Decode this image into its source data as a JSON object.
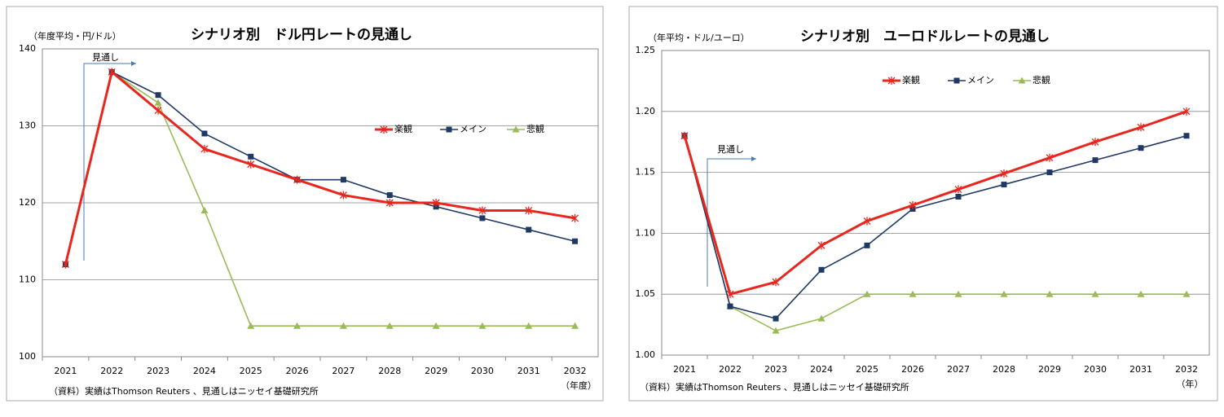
{
  "chart_data": [
    {
      "type": "line",
      "title": "シナリオ別　ドル円レートの見通し",
      "y_label": "（年度平均・円/ドル）",
      "x_label": "（年度）",
      "source": "（資料）実績はThomson Reuters 、見通しはニッセイ基礎研究所",
      "annotation": "見通し",
      "categories": [
        "2021",
        "2022",
        "2023",
        "2024",
        "2025",
        "2026",
        "2027",
        "2028",
        "2029",
        "2030",
        "2031",
        "2032"
      ],
      "series": [
        {
          "name": "楽観",
          "color": "#e8261e",
          "marker": "x",
          "values": [
            112,
            137,
            132,
            127,
            125,
            123,
            121,
            120,
            120,
            119,
            119,
            118
          ]
        },
        {
          "name": "メイン",
          "color": "#1f3864",
          "marker": "square",
          "values": [
            112,
            137,
            134,
            129,
            126,
            123,
            123,
            121,
            119.5,
            118,
            116.5,
            115
          ]
        },
        {
          "name": "悲観",
          "color": "#9bbb59",
          "marker": "triangle",
          "values": [
            112,
            137,
            133,
            119,
            104,
            104,
            104,
            104,
            104,
            104,
            104,
            104
          ]
        }
      ],
      "ylim": [
        100,
        140
      ],
      "yticks": [
        100,
        110,
        120,
        130,
        140
      ],
      "grid": true
    },
    {
      "type": "line",
      "title": "シナリオ別　ユーロドルレートの見通し",
      "y_label": "（年平均・ドル/ユーロ）",
      "x_label": "（年）",
      "source": "（資料）実績はThomson Reuters 、見通しはニッセイ基礎研究所",
      "annotation": "見通し",
      "categories": [
        "2021",
        "2022",
        "2023",
        "2024",
        "2025",
        "2026",
        "2027",
        "2028",
        "2029",
        "2030",
        "2031",
        "2032"
      ],
      "series": [
        {
          "name": "楽観",
          "color": "#e8261e",
          "marker": "x",
          "values": [
            1.18,
            1.05,
            1.06,
            1.09,
            1.11,
            1.123,
            1.136,
            1.149,
            1.162,
            1.175,
            1.187,
            1.2
          ]
        },
        {
          "name": "メイン",
          "color": "#1f3864",
          "marker": "square",
          "values": [
            1.18,
            1.04,
            1.03,
            1.07,
            1.09,
            1.12,
            1.13,
            1.14,
            1.15,
            1.16,
            1.17,
            1.18
          ]
        },
        {
          "name": "悲観",
          "color": "#9bbb59",
          "marker": "triangle",
          "values": [
            1.18,
            1.04,
            1.02,
            1.03,
            1.05,
            1.05,
            1.05,
            1.05,
            1.05,
            1.05,
            1.05,
            1.05
          ]
        }
      ],
      "ylim": [
        1.0,
        1.25
      ],
      "yticks": [
        {
          "value": 1.0,
          "label": "1.00"
        },
        1.05,
        {
          "value": 1.1,
          "label": "1.10"
        },
        1.15,
        {
          "value": 1.2,
          "label": "1.20"
        },
        1.25
      ],
      "grid": true
    }
  ]
}
